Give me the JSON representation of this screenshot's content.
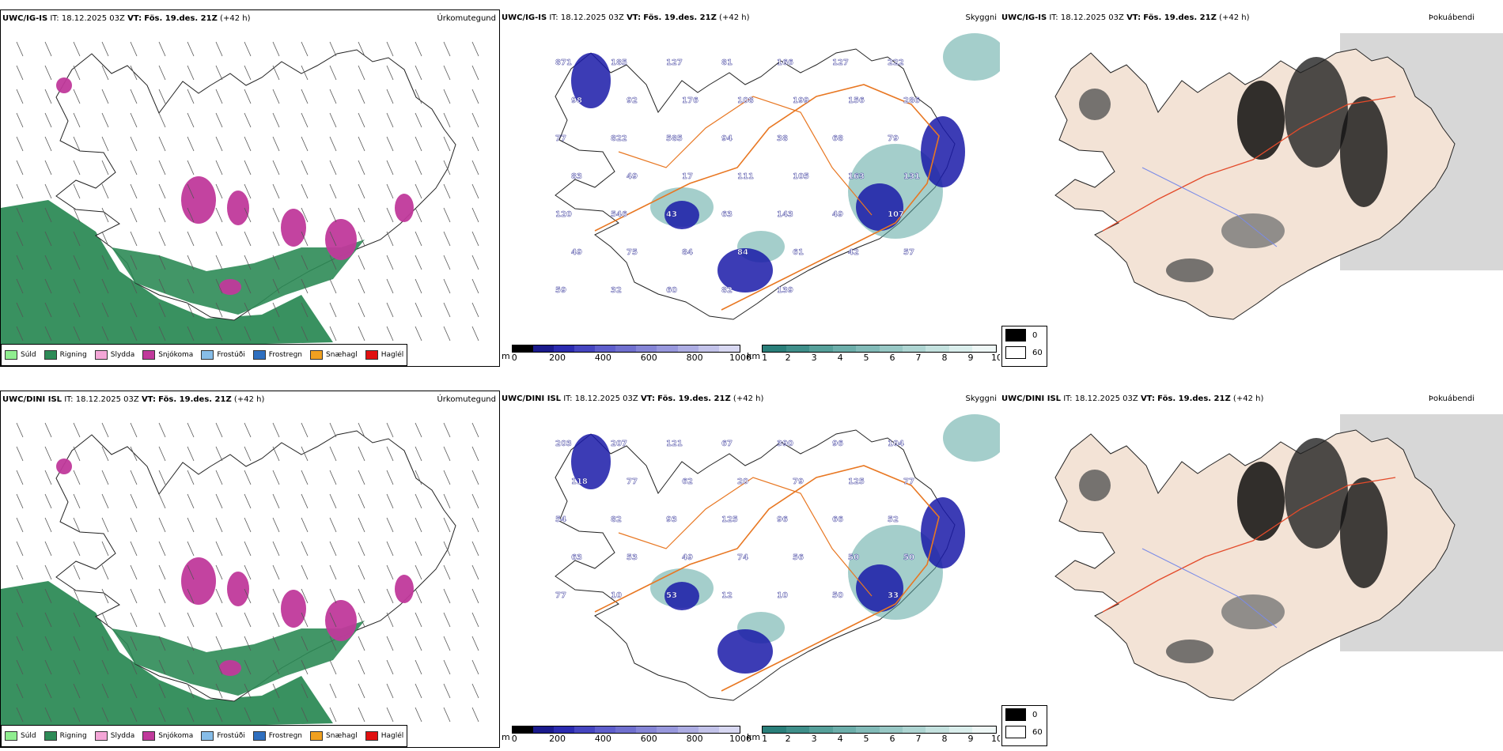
{
  "rows": [
    {
      "model": "UWC/IG-IS",
      "it_label": "IT:",
      "it_value": "18.12.2025 03Z",
      "vt_label": "VT:",
      "vt_value": "Fös. 19.des. 21Z",
      "lead": "(+42 h)",
      "panel1_title": "Úrkomutegund",
      "panel2_title": "Skyggni",
      "panel3_title": "Þokuábendi",
      "visibility_labels": [
        "871",
        "185",
        "127",
        "81",
        "166",
        "127",
        "222",
        "98",
        "92",
        "176",
        "108",
        "199",
        "156",
        "286",
        "77",
        "822",
        "585",
        "94",
        "38",
        "68",
        "79",
        "83",
        "49",
        "17",
        "111",
        "105",
        "163",
        "131",
        "120",
        "546",
        "43",
        "63",
        "143",
        "49",
        "107",
        "49",
        "75",
        "84",
        "84",
        "61",
        "42",
        "57",
        "59",
        "32",
        "60",
        "82",
        "139"
      ]
    },
    {
      "model": "UWC/DINI ISL",
      "it_label": "IT:",
      "it_value": "18.12.2025 03Z",
      "vt_label": "VT:",
      "vt_value": "Fös. 19.des. 21Z",
      "lead": "(+42 h)",
      "panel1_title": "Úrkomutegund",
      "panel2_title": "Skyggni",
      "panel3_title": "Þokuábendi",
      "visibility_labels": [
        "203",
        "207",
        "121",
        "67",
        "390",
        "96",
        "104",
        "118",
        "77",
        "62",
        "20",
        "79",
        "125",
        "77",
        "54",
        "82",
        "93",
        "125",
        "96",
        "66",
        "52",
        "63",
        "53",
        "49",
        "74",
        "56",
        "50",
        "50",
        "77",
        "10",
        "53",
        "12",
        "10",
        "50",
        "33"
      ]
    }
  ],
  "precip_legend": [
    {
      "label": "Súld",
      "color": "#90ee90"
    },
    {
      "label": "Rigning",
      "color": "#2e8b57"
    },
    {
      "label": "Slydda",
      "color": "#f4a6d7"
    },
    {
      "label": "Snjókoma",
      "color": "#c0399b"
    },
    {
      "label": "Frostúði",
      "color": "#87bde8"
    },
    {
      "label": "Frostregn",
      "color": "#2f6fbf"
    },
    {
      "label": "Snæhagl",
      "color": "#f0a020"
    },
    {
      "label": "Haglél",
      "color": "#e01010"
    }
  ],
  "elevation_bar": {
    "unit": "m",
    "ticks": [
      "0",
      "200",
      "400",
      "600",
      "800",
      "1000"
    ],
    "colors": [
      "#000000",
      "#1a1a8c",
      "#2b2bb0",
      "#4545c0",
      "#5e5ecc",
      "#7070cf",
      "#8585d6",
      "#9898dd",
      "#adade3",
      "#c3c3ea",
      "#d8d8f2"
    ]
  },
  "visibility_bar": {
    "unit": "km",
    "ticks": [
      "1",
      "2",
      "3",
      "4",
      "5",
      "6",
      "7",
      "8",
      "9",
      "10"
    ],
    "colors": [
      "#2a7f7a",
      "#3f8f8a",
      "#56a09a",
      "#6caeaa",
      "#82bbb8",
      "#98c8c5",
      "#aed5d2",
      "#c4e2df",
      "#daeeec",
      "#eef7f6"
    ]
  },
  "fog_legend": [
    {
      "value": "0",
      "color": "#000000"
    },
    {
      "value": "60",
      "color": "#ffffff"
    }
  ],
  "colors": {
    "rain": "#2e8b57",
    "snow": "#c0399b",
    "roads": "#e87722",
    "fog_land": "#f3e3d6",
    "vis_blue": "#1a1aa8"
  }
}
